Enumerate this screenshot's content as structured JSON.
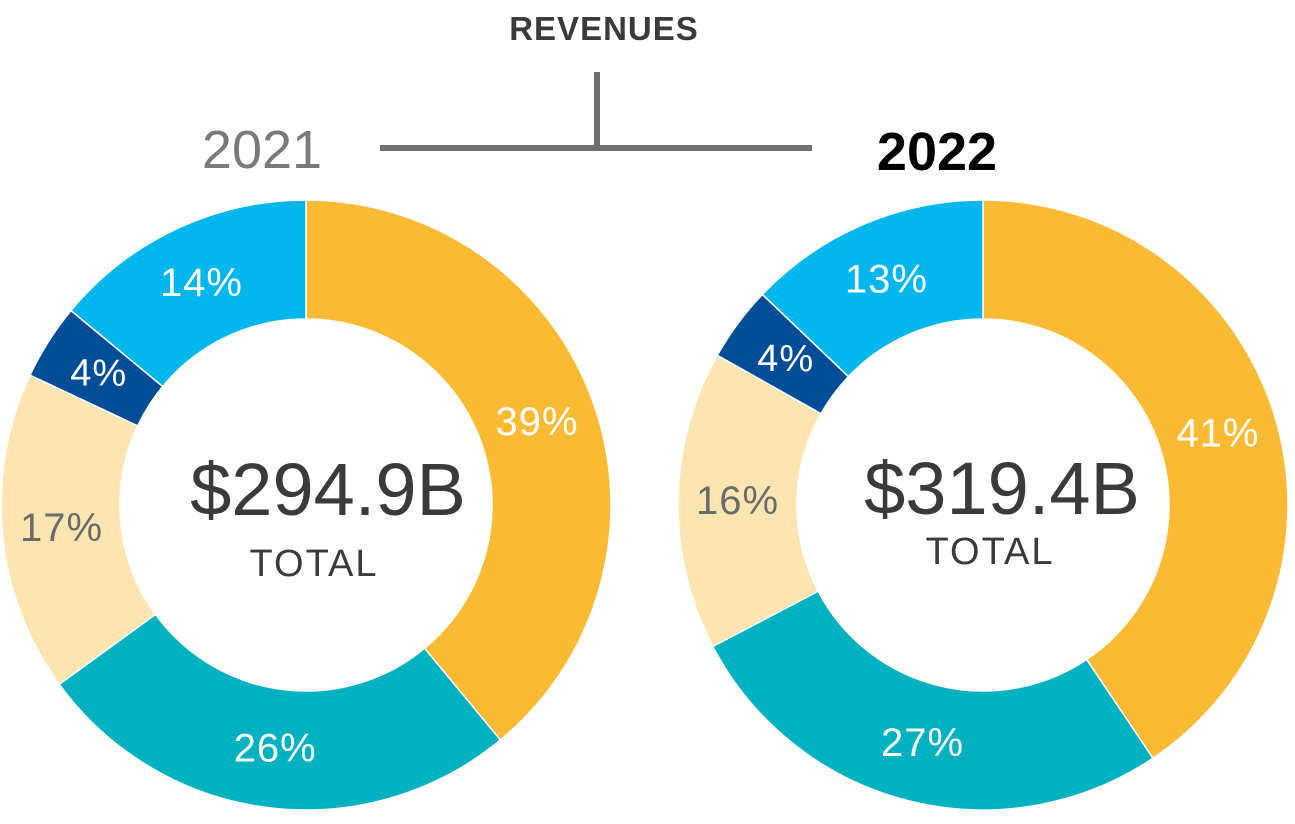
{
  "header": {
    "title": "REVENUES"
  },
  "colors": {
    "title": "#3a3a3a",
    "year_previous": "#7a7a7a",
    "year_current": "#000000",
    "connector": "#6f6f6f",
    "total_text": "#3a3a3a",
    "palette": [
      "#FBBA33",
      "#00B2C0",
      "#FDE5B2",
      "#004D97",
      "#00B7ED"
    ],
    "label_light": "#ffffff",
    "label_dark": "#6b6b6b"
  },
  "chart_data": [
    {
      "type": "pie",
      "year": "2021",
      "total_value": "$294.9B",
      "total_label": "TOTAL",
      "slices": [
        {
          "value": 39,
          "label": "39%",
          "color": "#FBBA33",
          "label_tone": "light"
        },
        {
          "value": 26,
          "label": "26%",
          "color": "#00B2C0",
          "label_tone": "light"
        },
        {
          "value": 17,
          "label": "17%",
          "color": "#FDE5B2",
          "label_tone": "dark"
        },
        {
          "value": 4,
          "label": "4%",
          "color": "#004D97",
          "label_tone": "light"
        },
        {
          "value": 14,
          "label": "14%",
          "color": "#00B7ED",
          "label_tone": "light"
        }
      ]
    },
    {
      "type": "pie",
      "year": "2022",
      "total_value": "$319.4B",
      "total_label": "TOTAL",
      "slices": [
        {
          "value": 41,
          "label": "41%",
          "color": "#FBBA33",
          "label_tone": "light"
        },
        {
          "value": 27,
          "label": "27%",
          "color": "#00B2C0",
          "label_tone": "light"
        },
        {
          "value": 16,
          "label": "16%",
          "color": "#FDE5B2",
          "label_tone": "dark"
        },
        {
          "value": 4,
          "label": "4%",
          "color": "#004D97",
          "label_tone": "light"
        },
        {
          "value": 13,
          "label": "13%",
          "color": "#00B7ED",
          "label_tone": "light"
        }
      ]
    }
  ]
}
